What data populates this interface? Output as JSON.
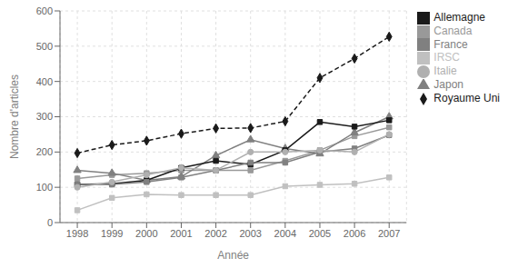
{
  "chart_data": {
    "type": "line",
    "xlabel": "Année",
    "ylabel": "Nombre d'articles",
    "x": [
      1998,
      1999,
      2000,
      2001,
      2002,
      2003,
      2004,
      2005,
      2006,
      2007
    ],
    "xlim": [
      1997.5,
      2007.5
    ],
    "xticks": [
      1998,
      1999,
      2000,
      2001,
      2002,
      2003,
      2004,
      2005,
      2006,
      2007
    ],
    "ylim": [
      0,
      600
    ],
    "yticks": [
      0,
      100,
      200,
      300,
      400,
      500,
      600
    ],
    "grid": true,
    "legend": "right",
    "series": [
      {
        "name": "Royaume Uni",
        "color": "#1a1a1a",
        "marker": "diamond",
        "line_style": "dashed",
        "values": [
          197,
          220,
          232,
          252,
          267,
          268,
          287,
          410,
          465,
          527
        ]
      },
      {
        "name": "Canada",
        "color": "#999999",
        "marker": "square",
        "line_style": "solid",
        "values": [
          125,
          135,
          140,
          148,
          148,
          148,
          175,
          205,
          245,
          270
        ]
      },
      {
        "name": "Japon",
        "color": "#808080",
        "marker": "triangle",
        "line_style": "solid",
        "values": [
          148,
          140,
          120,
          130,
          190,
          235,
          210,
          195,
          255,
          300
        ]
      },
      {
        "name": "Allemagne",
        "color": "#1a1a1a",
        "marker": "square",
        "line_style": "solid",
        "values": [
          108,
          110,
          120,
          155,
          175,
          165,
          205,
          285,
          272,
          290
        ]
      },
      {
        "name": "France",
        "color": "#808080",
        "marker": "square",
        "line_style": "solid",
        "values": [
          108,
          108,
          115,
          128,
          148,
          170,
          170,
          200,
          210,
          248
        ]
      },
      {
        "name": "Italie",
        "color": "#b0b0b0",
        "marker": "circle",
        "line_style": "solid",
        "values": [
          100,
          115,
          135,
          155,
          148,
          200,
          200,
          205,
          200,
          250
        ]
      },
      {
        "name": "IRSC",
        "color": "#c0c0c0",
        "marker": "square",
        "line_style": "solid",
        "values": [
          35,
          70,
          80,
          78,
          78,
          78,
          103,
          107,
          110,
          128
        ]
      }
    ]
  }
}
